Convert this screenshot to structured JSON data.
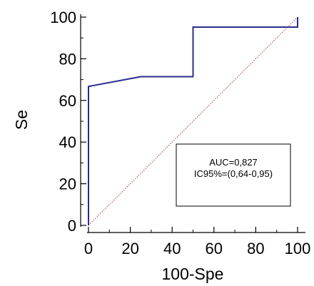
{
  "chart_data": {
    "type": "line",
    "title": "",
    "xlabel": "100-Spe",
    "ylabel": "Se",
    "xlim": [
      0,
      100
    ],
    "ylim": [
      0,
      100
    ],
    "x_ticks": [
      "0",
      "20",
      "40",
      "60",
      "80",
      "100"
    ],
    "y_ticks": [
      "0",
      "20",
      "40",
      "60",
      "80",
      "100"
    ],
    "grid": false,
    "series": [
      {
        "color": "#2b2c8c",
        "style": "solid step",
        "x": [
          0,
          0,
          25,
          50,
          50,
          100,
          100
        ],
        "y": [
          0,
          66.7,
          71.4,
          71.4,
          95.2,
          95.2,
          100
        ]
      },
      {
        "color": "#a0202a",
        "style": "dotted diagonal",
        "x": [
          0,
          100
        ],
        "y": [
          0,
          100
        ]
      }
    ],
    "annotation": {
      "lines": [
        "AUC=0,827",
        "IC95%=(0,64-0,95)"
      ]
    }
  }
}
